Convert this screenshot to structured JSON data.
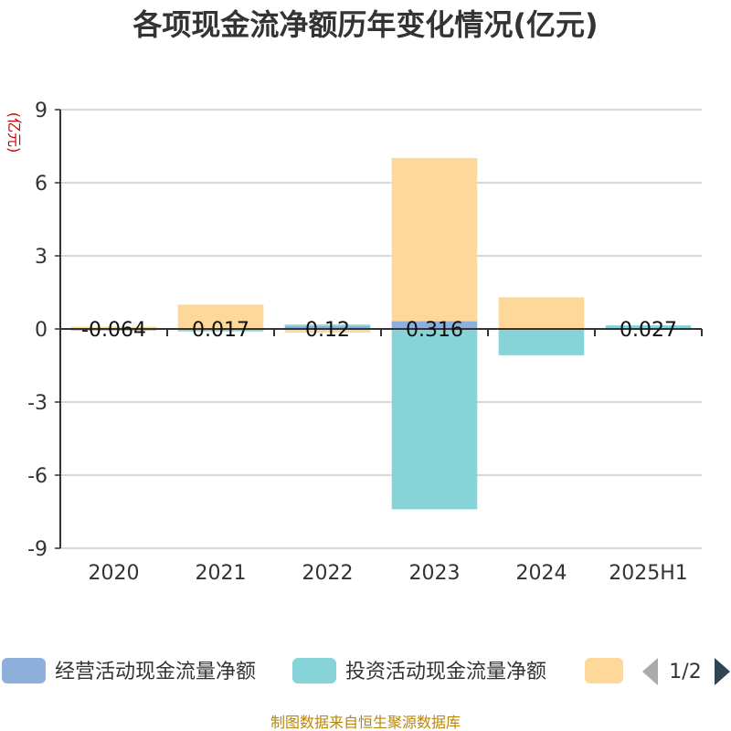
{
  "chart_data": {
    "type": "bar",
    "stacked": true,
    "title": "各项现金流净额历年变化情况(亿元)",
    "ylabel": "(亿元)",
    "categories": [
      "2020",
      "2021",
      "2022",
      "2023",
      "2024",
      "2025H1"
    ],
    "ylim": [
      -9,
      9
    ],
    "yticks": [
      9,
      6,
      3,
      0,
      -3,
      -6,
      -9
    ],
    "grid": true,
    "series": [
      {
        "name": "经营活动现金流量净额",
        "color": "#8eaedb",
        "values": [
          -0.064,
          0.017,
          0.12,
          0.316,
          -0.03,
          0.027
        ],
        "labels": [
          "-0.064",
          "0.017",
          "0.12",
          "0.316",
          "",
          "0.027"
        ]
      },
      {
        "name": "投资活动现金流量净额",
        "color": "#87d4d8",
        "values": [
          0.03,
          -0.1,
          0.06,
          -7.4,
          -1.05,
          0.12
        ]
      },
      {
        "name": "",
        "color": "#fdd898",
        "values": [
          0.06,
          0.98,
          -0.15,
          6.7,
          1.3,
          -0.05
        ]
      }
    ],
    "legend": {
      "position": "bottom",
      "page": "1/2"
    }
  },
  "footer": {
    "source": "制图数据来自恒生聚源数据库"
  }
}
